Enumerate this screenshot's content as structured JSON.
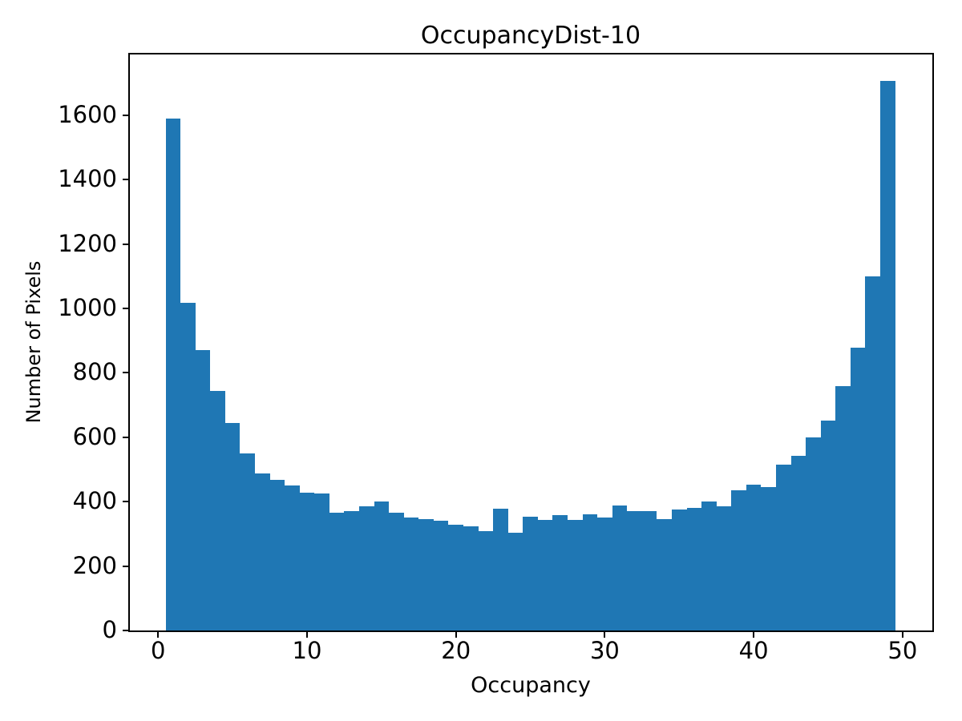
{
  "figure": {
    "background_color": "#ffffff",
    "text_color": "#000000"
  },
  "chart_data": {
    "type": "bar",
    "subtype": "histogram",
    "title": "OccupancyDist-10",
    "xlabel": "Occupancy",
    "ylabel": "Number of Pixels",
    "bar_color": "#1f77b4",
    "grid": false,
    "legend": false,
    "bin_width": 1,
    "categories": [
      1,
      2,
      3,
      4,
      5,
      6,
      7,
      8,
      9,
      10,
      11,
      12,
      13,
      14,
      15,
      16,
      17,
      18,
      19,
      20,
      21,
      22,
      23,
      24,
      25,
      26,
      27,
      28,
      29,
      30,
      31,
      32,
      33,
      34,
      35,
      36,
      37,
      38,
      39,
      40,
      41,
      42,
      43,
      44,
      45,
      46,
      47,
      48,
      49
    ],
    "values": [
      1590,
      1017,
      870,
      744,
      645,
      551,
      488,
      468,
      450,
      428,
      426,
      365,
      370,
      386,
      400,
      365,
      350,
      346,
      342,
      328,
      323,
      309,
      377,
      304,
      354,
      343,
      359,
      343,
      361,
      350,
      387,
      371,
      371,
      345,
      375,
      381,
      400,
      385,
      436,
      453,
      445,
      516,
      542,
      600,
      653,
      758,
      878,
      1100,
      1708
    ],
    "xticks": [
      0,
      10,
      20,
      30,
      40,
      50
    ],
    "yticks": [
      0,
      200,
      400,
      600,
      800,
      1000,
      1200,
      1400,
      1600
    ],
    "xlim": [
      -1.9,
      52.0
    ],
    "ylim": [
      0,
      1789
    ]
  }
}
